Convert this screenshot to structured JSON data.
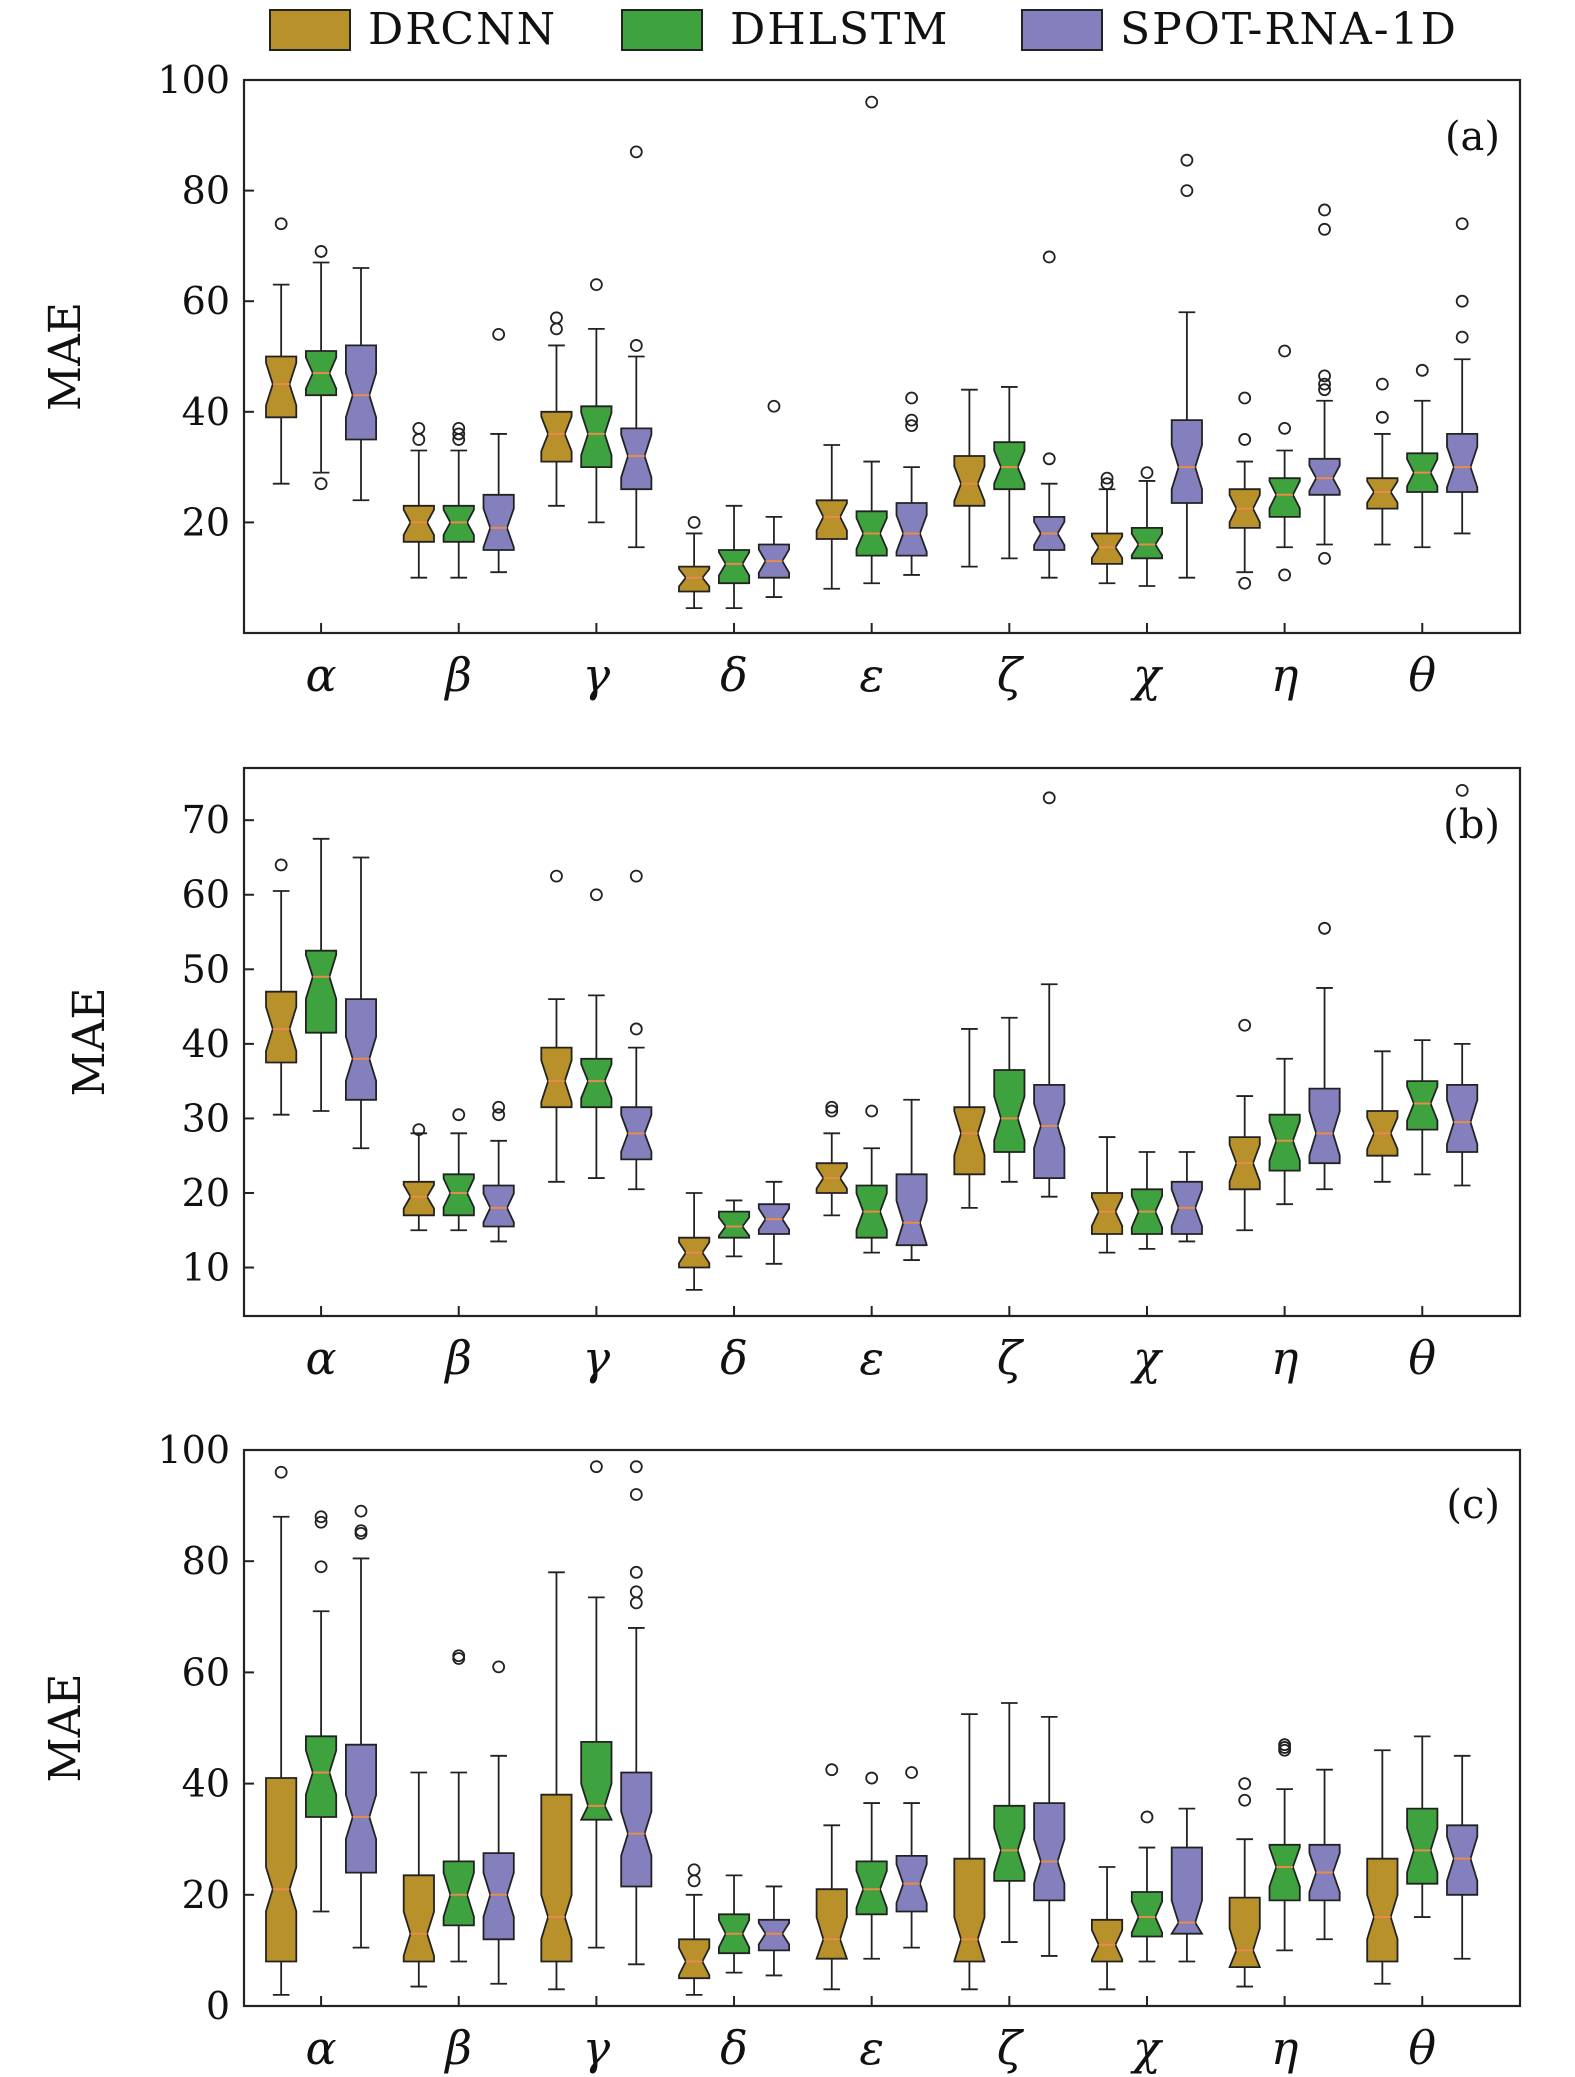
{
  "legend": [
    {
      "name": "DRCNN",
      "color": "#b8912a"
    },
    {
      "name": "DHLSTM",
      "color": "#3ea33e"
    },
    {
      "name": "SPOT-RNA-1D",
      "color": "#8480be"
    }
  ],
  "colors": {
    "median": "#e88a4a",
    "axis": "#222222"
  },
  "chart_data": [
    {
      "type": "box",
      "panel_label": "(a)",
      "ylabel": "MAE",
      "ylim": [
        0,
        100
      ],
      "yticks": [
        20,
        40,
        60,
        80,
        100
      ],
      "categories": [
        "α",
        "β",
        "γ",
        "δ",
        "ε",
        "ζ",
        "χ",
        "η",
        "θ"
      ],
      "series": [
        {
          "name": "DRCNN",
          "boxes": [
            {
              "q1": 39,
              "med": 45,
              "q3": 50,
              "lo": 27,
              "hi": 63,
              "out": [
                74
              ]
            },
            {
              "q1": 16.5,
              "med": 20,
              "q3": 23,
              "lo": 10,
              "hi": 33,
              "out": [
                35,
                37
              ]
            },
            {
              "q1": 31,
              "med": 36,
              "q3": 40,
              "lo": 23,
              "hi": 52,
              "out": [
                55,
                57
              ]
            },
            {
              "q1": 7.5,
              "med": 10,
              "q3": 12,
              "lo": 4.5,
              "hi": 18,
              "out": [
                20
              ]
            },
            {
              "q1": 17,
              "med": 21,
              "q3": 24,
              "lo": 8,
              "hi": 34,
              "out": []
            },
            {
              "q1": 23,
              "med": 27,
              "q3": 32,
              "lo": 12,
              "hi": 44,
              "out": []
            },
            {
              "q1": 12.5,
              "med": 15.5,
              "q3": 18,
              "lo": 9,
              "hi": 26,
              "out": [
                27,
                28
              ]
            },
            {
              "q1": 19,
              "med": 22.5,
              "q3": 26,
              "lo": 11,
              "hi": 31,
              "out": [
                9,
                35,
                42.5
              ]
            },
            {
              "q1": 22.5,
              "med": 25.5,
              "q3": 28,
              "lo": 16,
              "hi": 36,
              "out": [
                39,
                45
              ]
            }
          ]
        },
        {
          "name": "DHLSTM",
          "boxes": [
            {
              "q1": 43,
              "med": 47,
              "q3": 51,
              "lo": 29,
              "hi": 67,
              "out": [
                27,
                69
              ]
            },
            {
              "q1": 16.5,
              "med": 20,
              "q3": 23,
              "lo": 10,
              "hi": 33,
              "out": [
                35,
                36,
                37
              ]
            },
            {
              "q1": 30,
              "med": 36,
              "q3": 41,
              "lo": 20,
              "hi": 55,
              "out": [
                63
              ]
            },
            {
              "q1": 9,
              "med": 12.5,
              "q3": 15,
              "lo": 4.5,
              "hi": 23,
              "out": []
            },
            {
              "q1": 14,
              "med": 18,
              "q3": 22,
              "lo": 9,
              "hi": 31,
              "out": [
                96
              ]
            },
            {
              "q1": 26,
              "med": 30,
              "q3": 34.5,
              "lo": 13.5,
              "hi": 44.5,
              "out": []
            },
            {
              "q1": 13.5,
              "med": 16,
              "q3": 19,
              "lo": 8.5,
              "hi": 27.5,
              "out": [
                29
              ]
            },
            {
              "q1": 21,
              "med": 25,
              "q3": 28,
              "lo": 15.5,
              "hi": 33,
              "out": [
                10.5,
                37,
                51
              ]
            },
            {
              "q1": 25.5,
              "med": 29,
              "q3": 32.5,
              "lo": 15.5,
              "hi": 42,
              "out": [
                47.5
              ]
            }
          ]
        },
        {
          "name": "SPOT-RNA-1D",
          "boxes": [
            {
              "q1": 35,
              "med": 43,
              "q3": 52,
              "lo": 24,
              "hi": 66,
              "out": []
            },
            {
              "q1": 15,
              "med": 19,
              "q3": 25,
              "lo": 11,
              "hi": 36,
              "out": [
                54
              ]
            },
            {
              "q1": 26,
              "med": 32,
              "q3": 37,
              "lo": 15.5,
              "hi": 50,
              "out": [
                52,
                87
              ]
            },
            {
              "q1": 10,
              "med": 13,
              "q3": 16,
              "lo": 6.5,
              "hi": 21,
              "out": [
                41
              ]
            },
            {
              "q1": 14,
              "med": 18,
              "q3": 23.5,
              "lo": 10.5,
              "hi": 30,
              "out": [
                37.5,
                38.5,
                42.5
              ]
            },
            {
              "q1": 15,
              "med": 18,
              "q3": 21,
              "lo": 10,
              "hi": 27,
              "out": [
                31.5,
                68
              ]
            },
            {
              "q1": 23.5,
              "med": 30,
              "q3": 38.5,
              "lo": 10,
              "hi": 58,
              "out": [
                80,
                85.5
              ]
            },
            {
              "q1": 25,
              "med": 28,
              "q3": 31.5,
              "lo": 16,
              "hi": 42,
              "out": [
                13.5,
                44,
                45,
                46.5,
                73,
                76.5
              ]
            },
            {
              "q1": 25.5,
              "med": 30,
              "q3": 36,
              "lo": 18,
              "hi": 49.5,
              "out": [
                53.5,
                60,
                74
              ]
            }
          ]
        }
      ]
    },
    {
      "type": "box",
      "panel_label": "(b)",
      "ylabel": "MAE",
      "ylim": [
        3.5,
        77
      ],
      "yticks": [
        10,
        20,
        30,
        40,
        50,
        60,
        70
      ],
      "categories": [
        "α",
        "β",
        "γ",
        "δ",
        "ε",
        "ζ",
        "χ",
        "η",
        "θ"
      ],
      "series": [
        {
          "name": "DRCNN",
          "boxes": [
            {
              "q1": 37.5,
              "med": 42,
              "q3": 47,
              "lo": 30.5,
              "hi": 60.5,
              "out": [
                64
              ]
            },
            {
              "q1": 17,
              "med": 19.5,
              "q3": 21.5,
              "lo": 15,
              "hi": 28,
              "out": [
                28.5
              ]
            },
            {
              "q1": 31.5,
              "med": 35,
              "q3": 39.5,
              "lo": 21.5,
              "hi": 46,
              "out": [
                62.5
              ]
            },
            {
              "q1": 10,
              "med": 12,
              "q3": 14,
              "lo": 7,
              "hi": 20,
              "out": []
            },
            {
              "q1": 20,
              "med": 22,
              "q3": 24,
              "lo": 17,
              "hi": 28,
              "out": [
                31,
                31.5
              ]
            },
            {
              "q1": 22.5,
              "med": 28,
              "q3": 31.5,
              "lo": 18,
              "hi": 42,
              "out": []
            },
            {
              "q1": 14.5,
              "med": 17.5,
              "q3": 20,
              "lo": 12,
              "hi": 27.5,
              "out": []
            },
            {
              "q1": 20.5,
              "med": 24,
              "q3": 27.5,
              "lo": 15,
              "hi": 33,
              "out": [
                42.5
              ]
            },
            {
              "q1": 25,
              "med": 28,
              "q3": 31,
              "lo": 21.5,
              "hi": 39,
              "out": []
            }
          ]
        },
        {
          "name": "DHLSTM",
          "boxes": [
            {
              "q1": 41.5,
              "med": 49,
              "q3": 52.5,
              "lo": 31,
              "hi": 67.5,
              "out": []
            },
            {
              "q1": 17,
              "med": 20,
              "q3": 22.5,
              "lo": 15,
              "hi": 28,
              "out": [
                30.5
              ]
            },
            {
              "q1": 31.5,
              "med": 35,
              "q3": 38,
              "lo": 22,
              "hi": 46.5,
              "out": [
                60
              ]
            },
            {
              "q1": 14,
              "med": 15.5,
              "q3": 17.5,
              "lo": 11.5,
              "hi": 19,
              "out": []
            },
            {
              "q1": 14,
              "med": 17.5,
              "q3": 21,
              "lo": 12,
              "hi": 26,
              "out": [
                31
              ]
            },
            {
              "q1": 25.5,
              "med": 30,
              "q3": 36.5,
              "lo": 21.5,
              "hi": 43.5,
              "out": []
            },
            {
              "q1": 14.5,
              "med": 17.5,
              "q3": 20.5,
              "lo": 12.5,
              "hi": 25.5,
              "out": []
            },
            {
              "q1": 23,
              "med": 27,
              "q3": 30.5,
              "lo": 18.5,
              "hi": 38,
              "out": []
            },
            {
              "q1": 28.5,
              "med": 32,
              "q3": 35,
              "lo": 22.5,
              "hi": 40.5,
              "out": []
            }
          ]
        },
        {
          "name": "SPOT-RNA-1D",
          "boxes": [
            {
              "q1": 32.5,
              "med": 38,
              "q3": 46,
              "lo": 26,
              "hi": 65,
              "out": []
            },
            {
              "q1": 15.5,
              "med": 18,
              "q3": 21,
              "lo": 13.5,
              "hi": 27,
              "out": [
                30.5,
                31.5
              ]
            },
            {
              "q1": 24.5,
              "med": 28,
              "q3": 31.5,
              "lo": 20.5,
              "hi": 39.5,
              "out": [
                42,
                62.5
              ]
            },
            {
              "q1": 14.5,
              "med": 16.5,
              "q3": 18.5,
              "lo": 10.5,
              "hi": 21.5,
              "out": []
            },
            {
              "q1": 13,
              "med": 16,
              "q3": 22.5,
              "lo": 11,
              "hi": 32.5,
              "out": []
            },
            {
              "q1": 22,
              "med": 29,
              "q3": 34.5,
              "lo": 19.5,
              "hi": 48,
              "out": [
                73
              ]
            },
            {
              "q1": 14.5,
              "med": 18,
              "q3": 21.5,
              "lo": 13.5,
              "hi": 25.5,
              "out": []
            },
            {
              "q1": 24,
              "med": 28,
              "q3": 34,
              "lo": 20.5,
              "hi": 47.5,
              "out": [
                55.5
              ]
            },
            {
              "q1": 25.5,
              "med": 29.5,
              "q3": 34.5,
              "lo": 21,
              "hi": 40,
              "out": [
                74
              ]
            }
          ]
        }
      ]
    },
    {
      "type": "box",
      "panel_label": "(c)",
      "ylabel": "MAE",
      "ylim": [
        0,
        100
      ],
      "yticks": [
        0,
        20,
        40,
        60,
        80,
        100
      ],
      "categories": [
        "α",
        "β",
        "γ",
        "δ",
        "ε",
        "ζ",
        "χ",
        "η",
        "θ"
      ],
      "series": [
        {
          "name": "DRCNN",
          "boxes": [
            {
              "q1": 8,
              "med": 21,
              "q3": 41,
              "lo": 2,
              "hi": 88,
              "out": [
                96
              ]
            },
            {
              "q1": 8,
              "med": 13,
              "q3": 23.5,
              "lo": 3.5,
              "hi": 42,
              "out": []
            },
            {
              "q1": 8,
              "med": 16,
              "q3": 38,
              "lo": 3,
              "hi": 78,
              "out": []
            },
            {
              "q1": 5,
              "med": 8,
              "q3": 12,
              "lo": 2,
              "hi": 20,
              "out": [
                22.5,
                24.5
              ]
            },
            {
              "q1": 8.5,
              "med": 12,
              "q3": 21,
              "lo": 3,
              "hi": 32.5,
              "out": [
                42.5
              ]
            },
            {
              "q1": 8,
              "med": 12,
              "q3": 26.5,
              "lo": 3,
              "hi": 52.5,
              "out": []
            },
            {
              "q1": 8,
              "med": 11,
              "q3": 15.5,
              "lo": 3,
              "hi": 25,
              "out": []
            },
            {
              "q1": 7,
              "med": 10,
              "q3": 19.5,
              "lo": 3.5,
              "hi": 30,
              "out": [
                37,
                40
              ]
            },
            {
              "q1": 8,
              "med": 16,
              "q3": 26.5,
              "lo": 4,
              "hi": 46,
              "out": []
            }
          ]
        },
        {
          "name": "DHLSTM",
          "boxes": [
            {
              "q1": 34,
              "med": 42,
              "q3": 48.5,
              "lo": 17,
              "hi": 71,
              "out": [
                79,
                87,
                88
              ]
            },
            {
              "q1": 14.5,
              "med": 20,
              "q3": 26,
              "lo": 8,
              "hi": 42,
              "out": [
                62.5,
                63
              ]
            },
            {
              "q1": 33.5,
              "med": 36,
              "q3": 47.5,
              "lo": 10.5,
              "hi": 73.5,
              "out": [
                97
              ]
            },
            {
              "q1": 9.5,
              "med": 13,
              "q3": 16.5,
              "lo": 6,
              "hi": 23.5,
              "out": []
            },
            {
              "q1": 16.5,
              "med": 21,
              "q3": 26,
              "lo": 8.5,
              "hi": 36.5,
              "out": [
                41
              ]
            },
            {
              "q1": 22.5,
              "med": 28,
              "q3": 36,
              "lo": 11.5,
              "hi": 54.5,
              "out": []
            },
            {
              "q1": 12.5,
              "med": 16,
              "q3": 20.5,
              "lo": 8,
              "hi": 28.5,
              "out": [
                34
              ]
            },
            {
              "q1": 19,
              "med": 25,
              "q3": 29,
              "lo": 10,
              "hi": 39,
              "out": [
                46,
                46.5,
                47
              ]
            },
            {
              "q1": 22,
              "med": 28,
              "q3": 35.5,
              "lo": 16,
              "hi": 48.5,
              "out": []
            }
          ]
        },
        {
          "name": "SPOT-RNA-1D",
          "boxes": [
            {
              "q1": 24,
              "med": 34,
              "q3": 47,
              "lo": 10.5,
              "hi": 80.5,
              "out": [
                85,
                85.5,
                89
              ]
            },
            {
              "q1": 12,
              "med": 20,
              "q3": 27.5,
              "lo": 4,
              "hi": 45,
              "out": [
                61
              ]
            },
            {
              "q1": 21.5,
              "med": 31,
              "q3": 42,
              "lo": 7.5,
              "hi": 68,
              "out": [
                72.5,
                74.5,
                78,
                92,
                97
              ]
            },
            {
              "q1": 10,
              "med": 13,
              "q3": 15.5,
              "lo": 5.5,
              "hi": 21.5,
              "out": []
            },
            {
              "q1": 17,
              "med": 22,
              "q3": 27,
              "lo": 10.5,
              "hi": 36.5,
              "out": [
                42
              ]
            },
            {
              "q1": 19,
              "med": 26,
              "q3": 36.5,
              "lo": 9,
              "hi": 52,
              "out": []
            },
            {
              "q1": 13,
              "med": 15,
              "q3": 28.5,
              "lo": 8,
              "hi": 35.5,
              "out": []
            },
            {
              "q1": 19,
              "med": 24,
              "q3": 29,
              "lo": 12,
              "hi": 42.5,
              "out": []
            },
            {
              "q1": 20,
              "med": 26.5,
              "q3": 32.5,
              "lo": 8.5,
              "hi": 45,
              "out": []
            }
          ]
        }
      ]
    }
  ]
}
